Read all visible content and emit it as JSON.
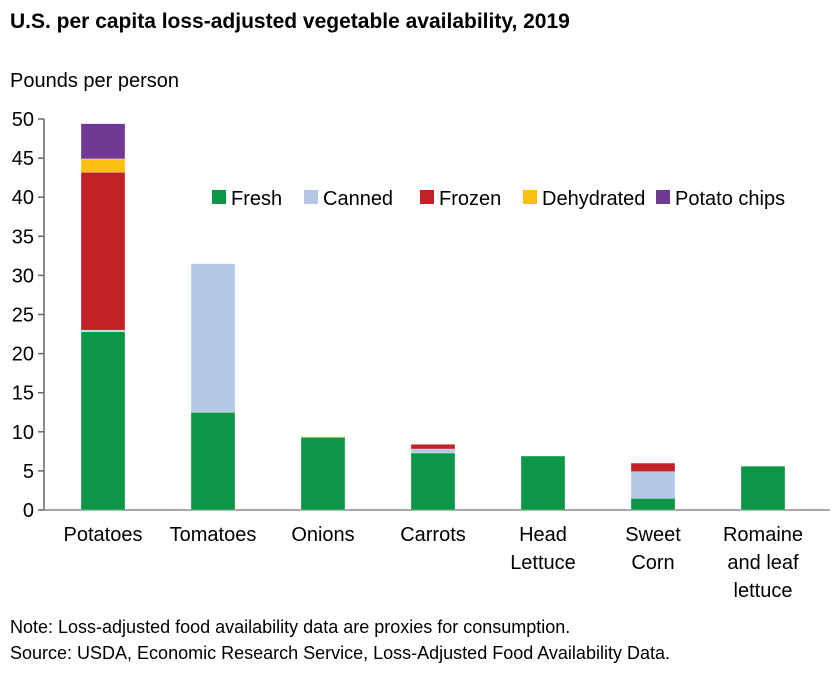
{
  "chart_data": {
    "type": "bar",
    "stacked": true,
    "title": "U.S. per capita loss-adjusted vegetable availability, 2019",
    "ylabel": "Pounds per person",
    "xlabel": "",
    "ylim": [
      0,
      50
    ],
    "yticks": [
      0,
      5,
      10,
      15,
      20,
      25,
      30,
      35,
      40,
      45,
      50
    ],
    "grid": false,
    "legend_position": "top-right",
    "categories": [
      [
        "Potatoes"
      ],
      [
        "Tomatoes"
      ],
      [
        "Onions"
      ],
      [
        "Carrots"
      ],
      [
        "Head",
        "Lettuce"
      ],
      [
        "Sweet",
        "Corn"
      ],
      [
        "Romaine",
        "and leaf",
        "lettuce"
      ]
    ],
    "series": [
      {
        "name": "Fresh",
        "color": "#0e9648",
        "values": [
          22.8,
          12.5,
          9.3,
          7.3,
          6.9,
          1.5,
          5.6
        ]
      },
      {
        "name": "Canned",
        "color": "#b4c8e6",
        "values": [
          0.2,
          19.0,
          0,
          0.5,
          0,
          3.4,
          0
        ]
      },
      {
        "name": "Frozen",
        "color": "#c12127",
        "values": [
          20.2,
          0,
          0,
          0.6,
          0,
          1.1,
          0
        ]
      },
      {
        "name": "Dehydrated",
        "color": "#fdc010",
        "values": [
          1.7,
          0,
          0.1,
          0,
          0,
          0,
          0
        ]
      },
      {
        "name": "Potato chips",
        "color": "#703a94",
        "values": [
          4.5,
          0,
          0,
          0,
          0,
          0,
          0
        ]
      }
    ]
  },
  "notes": {
    "note": "Note: Loss-adjusted food availability data are proxies for consumption.",
    "source": "Source: USDA, Economic Research Service, Loss-Adjusted Food Availability Data."
  }
}
